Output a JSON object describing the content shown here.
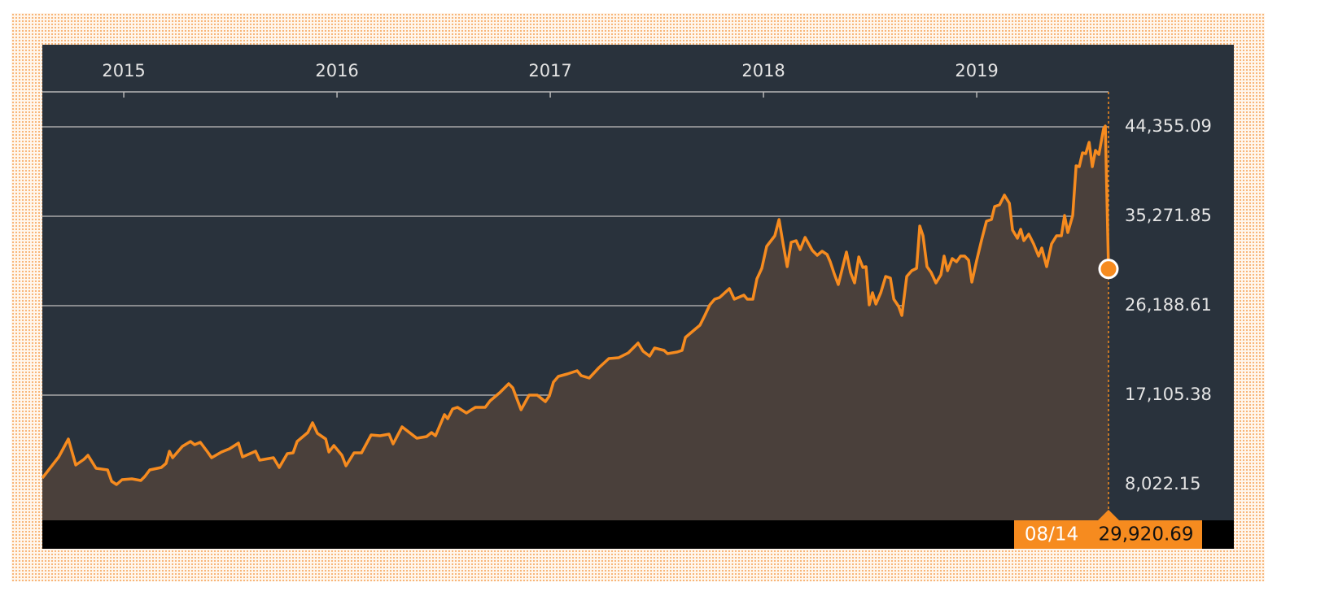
{
  "chart_data": {
    "type": "area",
    "color": "#f68b1f",
    "x": [
      2014.618,
      2014.695,
      2014.74,
      2014.775,
      2014.813,
      2014.832,
      2014.87,
      2014.924,
      2014.943,
      2014.966,
      2014.992,
      2015.038,
      2015.08,
      2015.099,
      2015.122,
      2015.176,
      2015.198,
      2015.214,
      2015.229,
      2015.275,
      2015.313,
      2015.332,
      2015.359,
      2015.393,
      2015.412,
      2015.458,
      2015.496,
      2015.538,
      2015.557,
      2015.618,
      2015.637,
      2015.702,
      2015.729,
      2015.767,
      2015.794,
      2015.813,
      2015.863,
      2015.885,
      2015.908,
      2015.947,
      2015.962,
      2015.985,
      2016.023,
      2016.042,
      2016.08,
      2016.115,
      2016.16,
      2016.202,
      2016.244,
      2016.263,
      2016.305,
      2016.374,
      2016.42,
      2016.443,
      2016.462,
      2016.504,
      2016.519,
      2016.542,
      2016.565,
      2016.607,
      2016.649,
      2016.695,
      2016.718,
      2016.763,
      2016.805,
      2016.824,
      2016.863,
      2016.901,
      2016.939,
      2016.977,
      2016.996,
      2017.015,
      2017.038,
      2017.08,
      2017.126,
      2017.145,
      2017.183,
      2017.229,
      2017.275,
      2017.321,
      2017.366,
      2017.412,
      2017.435,
      2017.466,
      2017.489,
      2017.534,
      2017.55,
      2017.595,
      2017.618,
      2017.634,
      2017.679,
      2017.702,
      2017.725,
      2017.748,
      2017.771,
      2017.794,
      2017.84,
      2017.863,
      2017.908,
      2017.924,
      2017.95,
      2017.969,
      2017.992,
      2018.015,
      2018.053,
      2018.073,
      2018.092,
      2018.111,
      2018.13,
      2018.153,
      2018.172,
      2018.195,
      2018.229,
      2018.252,
      2018.275,
      2018.298,
      2018.313,
      2018.332,
      2018.351,
      2018.389,
      2018.408,
      2018.427,
      2018.447,
      2018.466,
      2018.481,
      2018.496,
      2018.511,
      2018.527,
      2018.55,
      2018.573,
      2018.595,
      2018.611,
      2018.634,
      2018.649,
      2018.672,
      2018.695,
      2018.718,
      2018.733,
      2018.748,
      2018.767,
      2018.786,
      2018.809,
      2018.832,
      2018.847,
      2018.863,
      2018.885,
      2018.905,
      2018.924,
      2018.943,
      2018.962,
      2018.977,
      2019.0,
      2019.023,
      2019.046,
      2019.069,
      2019.084,
      2019.107,
      2019.13,
      2019.153,
      2019.168,
      2019.191,
      2019.206,
      2019.221,
      2019.244,
      2019.267,
      2019.29,
      2019.305,
      2019.328,
      2019.351,
      2019.374,
      2019.397,
      2019.412,
      2019.427,
      2019.45,
      2019.466,
      2019.481,
      2019.496,
      2019.511,
      2019.527,
      2019.542,
      2019.557,
      2019.573,
      2019.595,
      2019.603,
      2019.618
    ],
    "values": [
      8683,
      10830,
      12646,
      10004,
      10582,
      10995,
      9674,
      9509,
      8353,
      8022,
      8518,
      8600,
      8435,
      8847,
      9509,
      9756,
      10169,
      11408,
      10747,
      11903,
      12399,
      12068,
      12316,
      11325,
      10747,
      11325,
      11656,
      12234,
      10830,
      11408,
      10499,
      10747,
      9756,
      11160,
      11243,
      12399,
      13307,
      14298,
      13225,
      12646,
      11325,
      11986,
      10995,
      9922,
      11243,
      11243,
      13060,
      12977,
      13142,
      12151,
      13885,
      12729,
      12894,
      13307,
      12977,
      15124,
      14711,
      15702,
      15867,
      15289,
      15867,
      15867,
      16528,
      17353,
      18262,
      17849,
      15619,
      17106,
      17106,
      16445,
      17023,
      18427,
      19005,
      19252,
      19583,
      19087,
      18840,
      19913,
      20821,
      20904,
      21399,
      22390,
      21565,
      21069,
      21895,
      21647,
      21317,
      21482,
      21647,
      22968,
      23794,
      24207,
      25198,
      26271,
      26849,
      27015,
      27923,
      26849,
      27263,
      26849,
      26849,
      28914,
      29987,
      32217,
      33290,
      34942,
      32464,
      30152,
      32630,
      32795,
      31887,
      33125,
      31804,
      31308,
      31721,
      31391,
      30648,
      29409,
      28336,
      31639,
      29574,
      28501,
      31143,
      30069,
      30152,
      26271,
      27510,
      26354,
      27510,
      29161,
      28996,
      26849,
      26106,
      25198,
      29161,
      29740,
      29987,
      34281,
      33290,
      30152,
      29574,
      28501,
      29327,
      31226,
      29740,
      30978,
      30648,
      31226,
      31226,
      30813,
      28583,
      30813,
      32877,
      34777,
      34942,
      36263,
      36428,
      37419,
      36593,
      33868,
      33042,
      33951,
      32795,
      33455,
      32464,
      31226,
      32052,
      30152,
      32464,
      33290,
      33290,
      35355,
      33621,
      35355,
      40392,
      40309,
      41713,
      41630,
      42786,
      40309,
      41961,
      41548,
      44190,
      44438,
      29920.69
    ],
    "xlim": [
      2014.618,
      2019.618
    ],
    "xticks": [
      2015,
      2016,
      2017,
      2018,
      2019
    ],
    "ylim": [
      4389,
      47906
    ],
    "yticks": [
      {
        "value": 8022.15,
        "label": "8,022.15"
      },
      {
        "value": 17105.38,
        "label": "17,105.38"
      },
      {
        "value": 26188.61,
        "label": "26,188.61"
      },
      {
        "value": 35271.85,
        "label": "35,271.85"
      },
      {
        "value": 44355.09,
        "label": "44,355.09"
      }
    ],
    "grid": true,
    "highlight": {
      "date": "08/14",
      "label": "29,920.69"
    }
  }
}
